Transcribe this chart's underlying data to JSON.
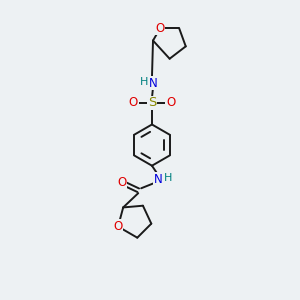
{
  "background_color": "#edf1f3",
  "bond_color": "#1a1a1a",
  "atom_colors": {
    "O": "#e00000",
    "N": "#0000dd",
    "S": "#888800",
    "H": "#008080",
    "C": "#1a1a1a"
  },
  "figsize": [
    3.0,
    3.0
  ],
  "dpi": 100,
  "xlim": [
    0,
    10
  ],
  "ylim": [
    0,
    15
  ]
}
